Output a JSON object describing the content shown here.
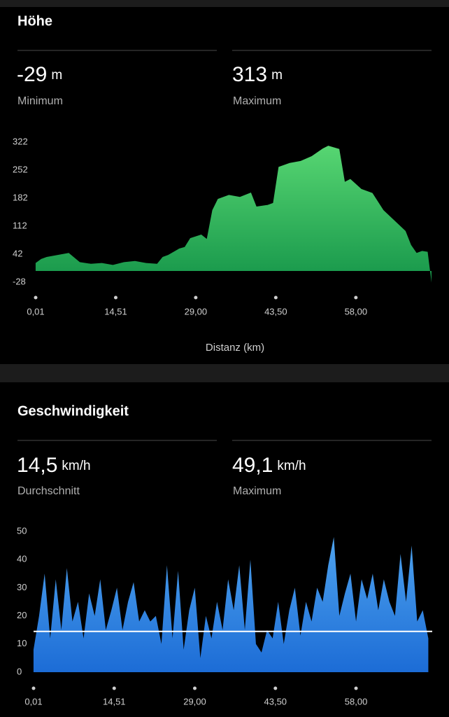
{
  "sections": [
    {
      "title": "Höhe",
      "stats": [
        {
          "value": -29,
          "unit": "m",
          "label": "Minimum"
        },
        {
          "value": 313,
          "unit": "m",
          "label": "Maximum"
        }
      ]
    },
    {
      "title": "Geschwindigkeit",
      "stats": [
        {
          "value": {
            "value": 14.5,
            "label": "14,5"
          },
          "unit": "km/h",
          "label": "Durchschnitt"
        },
        {
          "value": {
            "value": 49.1,
            "label": "49,1"
          },
          "unit": "km/h",
          "label": "Maximum"
        }
      ]
    }
  ],
  "chart_data": [
    {
      "type": "area",
      "x_label": "Distanz (km)",
      "x": [
        0,
        1,
        2,
        4,
        6,
        8,
        10,
        12,
        14,
        16,
        18,
        20,
        22,
        23,
        24,
        26,
        27,
        28,
        30,
        31,
        32,
        33,
        35,
        37,
        39,
        40,
        42,
        43,
        44,
        46,
        48,
        50,
        52,
        53,
        55,
        56,
        57,
        59,
        61,
        63,
        65,
        67,
        68,
        69,
        70,
        71,
        71.7
      ],
      "values": [
        20,
        30,
        35,
        40,
        45,
        22,
        18,
        20,
        15,
        22,
        25,
        20,
        18,
        35,
        40,
        56,
        60,
        82,
        91,
        80,
        152,
        180,
        190,
        185,
        196,
        161,
        165,
        170,
        260,
        270,
        275,
        287,
        306,
        313,
        305,
        223,
        230,
        205,
        195,
        152,
        126,
        100,
        65,
        45,
        50,
        48,
        -29
      ],
      "color": "#3cc35a",
      "xlim": [
        0.01,
        71.7
      ],
      "xticks": [
        {
          "value": 0.01,
          "label": "0,01"
        },
        {
          "value": 14.51,
          "label": "14,51"
        },
        {
          "value": 29.0,
          "label": "29,00"
        },
        {
          "value": 43.5,
          "label": "43,50"
        },
        {
          "value": 58.0,
          "label": "58,00"
        }
      ],
      "ylim": [
        -28,
        322
      ],
      "yticks": [
        -28,
        42,
        112,
        182,
        252,
        322
      ]
    },
    {
      "type": "area",
      "x": [
        0,
        1,
        2,
        3,
        4,
        5,
        6,
        7,
        8,
        9,
        10,
        11,
        12,
        13,
        14,
        15,
        16,
        17,
        18,
        19,
        20,
        21,
        22,
        23,
        24,
        25,
        26,
        27,
        28,
        29,
        30,
        31,
        32,
        33,
        34,
        35,
        36,
        37,
        38,
        39,
        40,
        41,
        42,
        43,
        44,
        45,
        46,
        47,
        48,
        49,
        50,
        51,
        52,
        53,
        54,
        55,
        56,
        57,
        58,
        59,
        60,
        61,
        62,
        63,
        64,
        65,
        66,
        67,
        68,
        69,
        70,
        71
      ],
      "values": [
        8,
        20,
        35,
        12,
        33,
        15,
        37,
        18,
        25,
        12,
        28,
        20,
        33,
        15,
        22,
        30,
        15,
        25,
        32,
        18,
        22,
        18,
        20,
        10,
        38,
        12,
        36,
        8,
        22,
        30,
        5,
        20,
        12,
        25,
        15,
        33,
        22,
        38,
        15,
        40,
        10,
        7,
        15,
        12,
        25,
        10,
        22,
        30,
        13,
        25,
        18,
        30,
        25,
        38,
        48,
        20,
        28,
        35,
        18,
        33,
        26,
        35,
        22,
        33,
        25,
        20,
        42,
        25,
        45,
        18,
        22,
        12
      ],
      "color": "#2f86e0",
      "xlim": [
        0.01,
        71.7
      ],
      "xticks": [
        {
          "value": 0.01,
          "label": "0,01"
        },
        {
          "value": 14.51,
          "label": "14,51"
        },
        {
          "value": 29.0,
          "label": "29,00"
        },
        {
          "value": 43.5,
          "label": "43,50"
        },
        {
          "value": 58.0,
          "label": "58,00"
        }
      ],
      "ylim": [
        0,
        50
      ],
      "yticks": [
        0,
        10,
        20,
        30,
        40,
        50
      ]
    }
  ]
}
